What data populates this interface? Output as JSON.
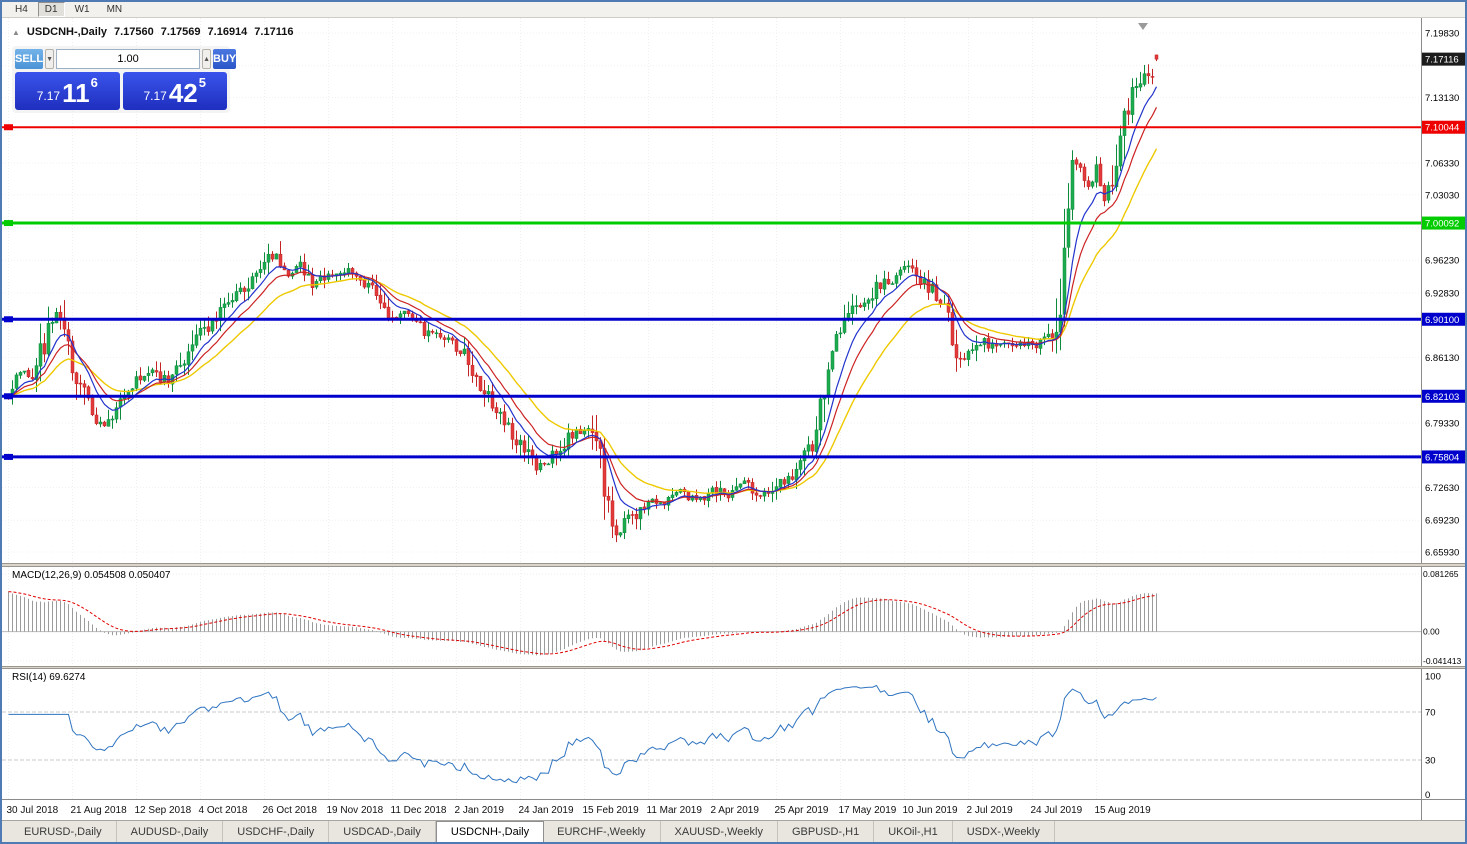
{
  "toolbar": {
    "timeframes": [
      {
        "label": "H4",
        "active": false
      },
      {
        "label": "D1",
        "active": true
      },
      {
        "label": "W1",
        "active": false
      },
      {
        "label": "MN",
        "active": false
      }
    ]
  },
  "header": {
    "collapse_icon": "▲",
    "title": "USDCNH-,Daily",
    "open": "7.17560",
    "high": "7.17569",
    "low": "7.16914",
    "close": "7.17116"
  },
  "trade_panel": {
    "sell_label": "SELL",
    "buy_label": "BUY",
    "volume": "1.00",
    "sell_price": {
      "prefix": "7.17",
      "big": "11",
      "sup": "6"
    },
    "buy_price": {
      "prefix": "7.17",
      "big": "42",
      "sup": "5"
    }
  },
  "chart_data": {
    "type": "candlestick",
    "title": "USDCNH-,Daily",
    "price_axis": {
      "top_price": 7.1983,
      "bottom_price": 6.6593,
      "ticks": [
        "7.19830",
        "7.16430",
        "7.13130",
        "7.09730",
        "7.06330",
        "7.03030",
        "6.99630",
        "6.96230",
        "6.92830",
        "6.89530",
        "6.86130",
        "6.82730",
        "6.79330",
        "6.76030",
        "6.72630",
        "6.69230",
        "6.65930"
      ]
    },
    "x_labels": [
      "30 Jul 2018",
      "21 Aug 2018",
      "12 Sep 2018",
      "4 Oct 2018",
      "26 Oct 2018",
      "19 Nov 2018",
      "11 Dec 2018",
      "2 Jan 2019",
      "24 Jan 2019",
      "15 Feb 2019",
      "11 Mar 2019",
      "2 Apr 2019",
      "25 Apr 2019",
      "17 May 2019",
      "10 Jun 2019",
      "2 Jul 2019",
      "24 Jul 2019",
      "15 Aug 2019"
    ],
    "bars_per_label": 16,
    "num_candles": 288,
    "last_candle": {
      "open": 7.1756,
      "high": 7.17569,
      "low": 7.16914,
      "close": 7.17116
    },
    "current_price": {
      "value": 7.17116,
      "label": "7.17116",
      "badge_color": "#1c1c1c"
    },
    "levels": [
      {
        "price": 7.10044,
        "label": "7.10044",
        "color": "#ee0000",
        "width": 2
      },
      {
        "price": 7.00092,
        "label": "7.00092",
        "color": "#00cc00",
        "width": 3
      },
      {
        "price": 6.901,
        "label": "6.90100",
        "color": "#0000cc",
        "width": 3
      },
      {
        "price": 6.82103,
        "label": "6.82103",
        "color": "#0000cc",
        "width": 3
      },
      {
        "price": 6.75804,
        "label": "6.75804",
        "color": "#0000cc",
        "width": 3
      }
    ],
    "candle_colors": {
      "up": "#1cab4f",
      "down": "#e23a3a",
      "up_stroke": "#0d8a3c",
      "down_stroke": "#c22424"
    },
    "moving_averages": [
      {
        "period": 24,
        "color": "#eec900",
        "width": 1.4
      },
      {
        "period": 13,
        "color": "#cc2222",
        "width": 1.2
      },
      {
        "period": 8,
        "color": "#2233cc",
        "width": 1.2
      }
    ],
    "close_anchors": [
      [
        0,
        6.822
      ],
      [
        3,
        6.85
      ],
      [
        6,
        6.842
      ],
      [
        9,
        6.878
      ],
      [
        12,
        6.908
      ],
      [
        15,
        6.872
      ],
      [
        18,
        6.828
      ],
      [
        21,
        6.8
      ],
      [
        24,
        6.792
      ],
      [
        28,
        6.815
      ],
      [
        32,
        6.838
      ],
      [
        36,
        6.848
      ],
      [
        40,
        6.836
      ],
      [
        44,
        6.862
      ],
      [
        48,
        6.888
      ],
      [
        52,
        6.902
      ],
      [
        56,
        6.922
      ],
      [
        60,
        6.938
      ],
      [
        64,
        6.958
      ],
      [
        67,
        6.972
      ],
      [
        70,
        6.948
      ],
      [
        73,
        6.96
      ],
      [
        76,
        6.938
      ],
      [
        80,
        6.946
      ],
      [
        84,
        6.952
      ],
      [
        88,
        6.942
      ],
      [
        92,
        6.928
      ],
      [
        96,
        6.9
      ],
      [
        100,
        6.908
      ],
      [
        104,
        6.888
      ],
      [
        108,
        6.884
      ],
      [
        112,
        6.872
      ],
      [
        116,
        6.85
      ],
      [
        120,
        6.818
      ],
      [
        124,
        6.792
      ],
      [
        128,
        6.772
      ],
      [
        132,
        6.748
      ],
      [
        136,
        6.758
      ],
      [
        140,
        6.776
      ],
      [
        144,
        6.786
      ],
      [
        147,
        6.775
      ],
      [
        150,
        6.702
      ],
      [
        152,
        6.678
      ],
      [
        156,
        6.695
      ],
      [
        160,
        6.715
      ],
      [
        164,
        6.708
      ],
      [
        168,
        6.725
      ],
      [
        172,
        6.712
      ],
      [
        176,
        6.728
      ],
      [
        180,
        6.718
      ],
      [
        184,
        6.732
      ],
      [
        188,
        6.718
      ],
      [
        192,
        6.73
      ],
      [
        196,
        6.742
      ],
      [
        200,
        6.762
      ],
      [
        203,
        6.812
      ],
      [
        206,
        6.862
      ],
      [
        210,
        6.902
      ],
      [
        214,
        6.922
      ],
      [
        218,
        6.936
      ],
      [
        222,
        6.946
      ],
      [
        226,
        6.956
      ],
      [
        229,
        6.938
      ],
      [
        232,
        6.928
      ],
      [
        235,
        6.896
      ],
      [
        238,
        6.856
      ],
      [
        241,
        6.868
      ],
      [
        244,
        6.876
      ],
      [
        248,
        6.872
      ],
      [
        252,
        6.878
      ],
      [
        256,
        6.874
      ],
      [
        260,
        6.882
      ],
      [
        262,
        6.898
      ],
      [
        263,
        6.93
      ],
      [
        264,
        6.982
      ],
      [
        265,
        7.028
      ],
      [
        266,
        7.048
      ],
      [
        268,
        7.062
      ],
      [
        270,
        7.038
      ],
      [
        272,
        7.056
      ],
      [
        274,
        7.022
      ],
      [
        276,
        7.058
      ],
      [
        278,
        7.092
      ],
      [
        280,
        7.118
      ],
      [
        282,
        7.146
      ],
      [
        284,
        7.162
      ],
      [
        286,
        7.158
      ],
      [
        287,
        7.171
      ]
    ],
    "indicators": {
      "macd": {
        "label": "MACD(12,26,9) 0.054508 0.050407",
        "fast": 12,
        "slow": 26,
        "signal": 9,
        "scale": {
          "top_value": 0.081265,
          "bottom_value": -0.041413,
          "labels": [
            "0.081265",
            "0.00",
            "-0.041413"
          ]
        },
        "hist_color": "#9b9b9b",
        "signal_color": "#e00000"
      },
      "rsi": {
        "label": "RSI(14) 69.6274",
        "period": 14,
        "levels": [
          70,
          30
        ],
        "scale_labels": [
          "100",
          "70",
          "30",
          "0"
        ],
        "line_color": "#2f74c0"
      }
    }
  },
  "tabs": {
    "items": [
      "EURUSD-,Daily",
      "AUDUSD-,Daily",
      "USDCHF-,Daily",
      "USDCAD-,Daily",
      "USDCNH-,Daily",
      "EURCHF-,Weekly",
      "XAUUSD-,Weekly",
      "GBPUSD-,H1",
      "UKOil-,H1",
      "USDX-,Weekly"
    ],
    "active_index": 4
  }
}
